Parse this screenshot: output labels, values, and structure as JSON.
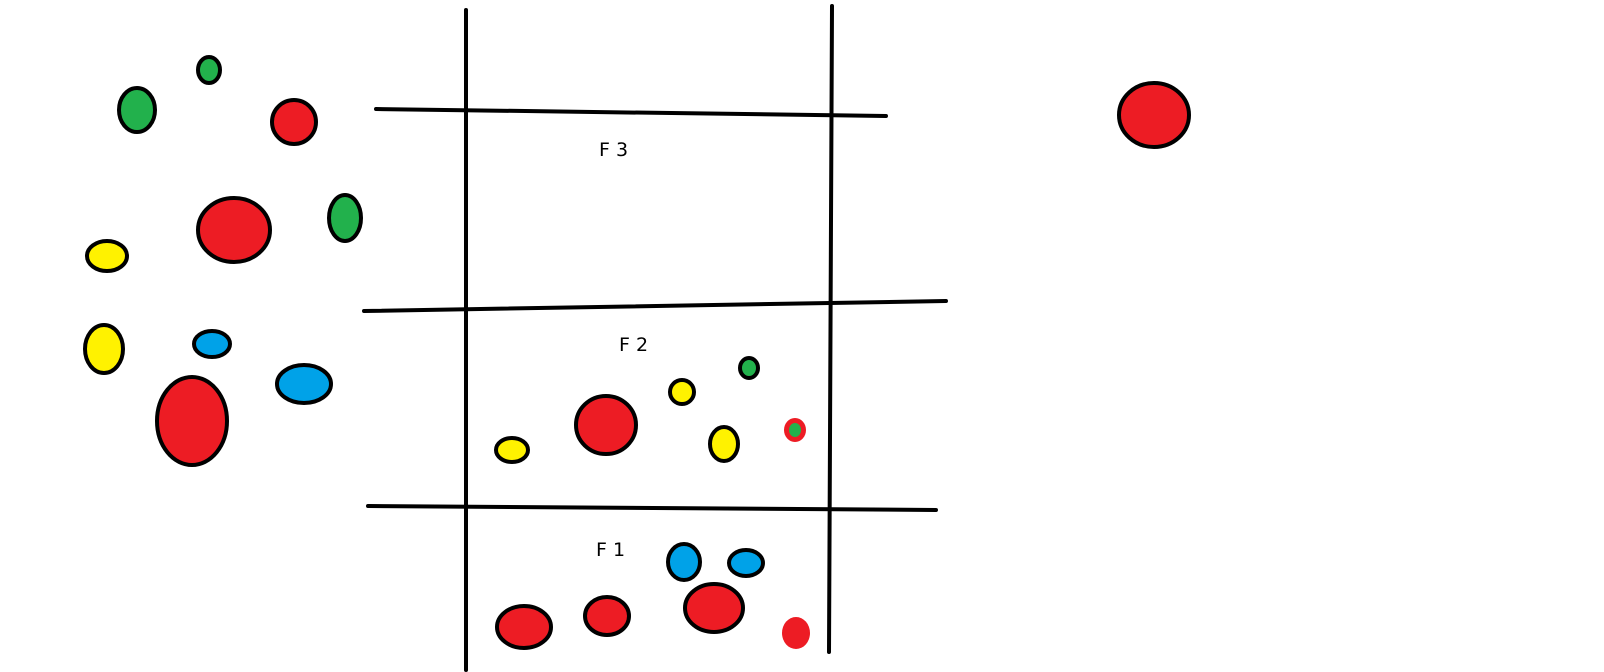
{
  "colors": {
    "red": "#ed1c24",
    "green": "#22b14c",
    "yellow": "#fff200",
    "blue": "#00a2e8",
    "outline": "#000000",
    "background": "#ffffff"
  },
  "floors": [
    {
      "id": "floor-3",
      "label": "F 3",
      "balls": []
    },
    {
      "id": "floor-2",
      "label": "F 2",
      "balls": [
        {
          "color": "yellow"
        },
        {
          "color": "red"
        },
        {
          "color": "yellow"
        },
        {
          "color": "green"
        },
        {
          "color": "yellow"
        },
        {
          "color": "red-green"
        }
      ]
    },
    {
      "id": "floor-1",
      "label": "F 1",
      "balls": [
        {
          "color": "blue"
        },
        {
          "color": "blue"
        },
        {
          "color": "red"
        },
        {
          "color": "red"
        },
        {
          "color": "red"
        },
        {
          "color": "red"
        }
      ]
    }
  ],
  "outside_balls": [
    {
      "color": "green"
    },
    {
      "color": "green"
    },
    {
      "color": "red"
    },
    {
      "color": "red"
    },
    {
      "color": "green"
    },
    {
      "color": "yellow"
    },
    {
      "color": "yellow"
    },
    {
      "color": "blue"
    },
    {
      "color": "blue"
    },
    {
      "color": "red"
    }
  ],
  "isolated_ball": {
    "color": "red"
  }
}
